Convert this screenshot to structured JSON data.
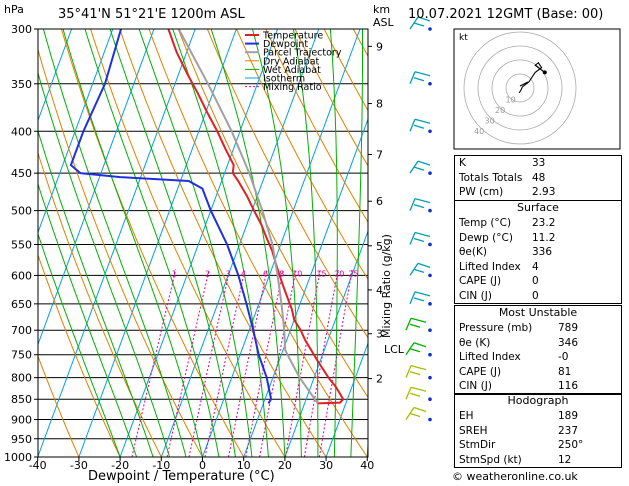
{
  "header": {
    "location": "35°41'N  51°21'E  1200m  ASL",
    "datetime": "10.07.2021  12GMT  (Base: 00)"
  },
  "skewt": {
    "pressure_unit": "hPa",
    "height_unit": "km",
    "height_unit2": "ASL",
    "pressure_ticks": [
      "300",
      "350",
      "400",
      "450",
      "500",
      "550",
      "600",
      "650",
      "700",
      "750",
      "800",
      "850",
      "900",
      "950",
      "1000"
    ],
    "temp_ticks": [
      "-40",
      "-30",
      "-20",
      "-10",
      "0",
      "10",
      "20",
      "30",
      "40"
    ],
    "xlabel": "Dewpoint / Temperature (°C)",
    "km_ticks": [
      "9",
      "8",
      "7",
      "6",
      "5",
      "4",
      "3",
      "2"
    ],
    "lcl_label": "LCL",
    "mixing_ratio_label": "Mixing Ratio (g/kg)",
    "mixing_ratio_ticks": [
      "1",
      "2",
      "3",
      "4",
      "6",
      "8",
      "10",
      "15",
      "20",
      "25"
    ],
    "legend": [
      "Temperature",
      "Dewpoint",
      "Parcel Trajectory",
      "Dry Adiabat",
      "Wet Adiabat",
      "Isotherm",
      "Mixing Ratio"
    ],
    "colors": {
      "temperature": "#e02020",
      "dewpoint": "#2030e0",
      "parcel": "#a0a0a0",
      "dry_adiabat": "#e08000",
      "wet_adiabat": "#00b000",
      "isotherm": "#00a0e0",
      "mixing_ratio": "#e000a0",
      "wind": "#00a0b0"
    }
  },
  "chart_data": {
    "type": "line",
    "title": "35°41'N  51°21'E  1200m  ASL",
    "xlabel": "Dewpoint / Temperature (°C)",
    "ylabel": "hPa",
    "xlim": [
      -40,
      40
    ],
    "ylim": [
      1000,
      300
    ],
    "y_scale": "log",
    "series": [
      {
        "name": "Temperature",
        "pressure": [
          860,
          858,
          850,
          840,
          820,
          800,
          760,
          720,
          700,
          680,
          660,
          640,
          620,
          600,
          580,
          560,
          540,
          520,
          500,
          480,
          460,
          450,
          440,
          420,
          400,
          380,
          360,
          340,
          320,
          300
        ],
        "values": [
          23.2,
          28.5,
          29.0,
          28.0,
          26.0,
          23.5,
          19.0,
          14.5,
          12.5,
          10.0,
          8.5,
          6.5,
          4.5,
          2.5,
          0.5,
          -1.5,
          -4.0,
          -6.5,
          -9.5,
          -12.5,
          -16.0,
          -18.0,
          -18.5,
          -22.0,
          -25.5,
          -29.5,
          -33.5,
          -38.0,
          -42.5,
          -46.5
        ]
      },
      {
        "name": "Dewpoint",
        "pressure": [
          860,
          850,
          800,
          750,
          700,
          650,
          600,
          550,
          500,
          470,
          460,
          455,
          450,
          440,
          400,
          350,
          300
        ],
        "values": [
          11.2,
          11.5,
          8.5,
          4.5,
          1.0,
          -3.0,
          -7.5,
          -13.0,
          -20.0,
          -24.0,
          -28.0,
          -45.0,
          -55.0,
          -58.0,
          -58.0,
          -57.0,
          -58.0
        ]
      },
      {
        "name": "Parcel Trajectory",
        "pressure": [
          860,
          800,
          760,
          740,
          700,
          650,
          600,
          550,
          500,
          450,
          400,
          350,
          300
        ],
        "values": [
          23.2,
          16.5,
          12.5,
          10.5,
          8.5,
          5.5,
          2.0,
          -2.0,
          -7.5,
          -14.0,
          -22.0,
          -32.0,
          -44.0
        ]
      }
    ]
  },
  "hodograph": {
    "unit_label": "kt",
    "ring_labels": [
      "10",
      "20",
      "30",
      "40"
    ],
    "wind_u": [
      2,
      3,
      4,
      6,
      8,
      10,
      12,
      14,
      16,
      14,
      12,
      16,
      18
    ],
    "wind_v": [
      1,
      3,
      6,
      8,
      10,
      14,
      18,
      20,
      22,
      26,
      24,
      20,
      18
    ]
  },
  "indices": {
    "rows": [
      {
        "label": "K",
        "value": "33"
      },
      {
        "label": "Totals Totals",
        "value": "48"
      },
      {
        "label": "PW (cm)",
        "value": "2.93"
      }
    ],
    "surface": {
      "title": "Surface",
      "rows": [
        {
          "label": "Temp (°C)",
          "value": "23.2"
        },
        {
          "label": "Dewp (°C)",
          "value": "11.2"
        },
        {
          "label": "θe(K)",
          "value": "336"
        },
        {
          "label": "Lifted Index",
          "value": "4"
        },
        {
          "label": "CAPE (J)",
          "value": "0"
        },
        {
          "label": "CIN (J)",
          "value": "0"
        }
      ]
    },
    "most_unstable": {
      "title": "Most Unstable",
      "rows": [
        {
          "label": "Pressure (mb)",
          "value": "789"
        },
        {
          "label": "θe (K)",
          "value": "346"
        },
        {
          "label": "Lifted Index",
          "value": "-0"
        },
        {
          "label": "CAPE (J)",
          "value": "81"
        },
        {
          "label": "CIN (J)",
          "value": "116"
        }
      ]
    },
    "hodograph_params": {
      "title": "Hodograph",
      "rows": [
        {
          "label": "EH",
          "value": "189"
        },
        {
          "label": "SREH",
          "value": "237"
        },
        {
          "label": "StmDir",
          "value": "250°"
        },
        {
          "label": "StmSpd (kt)",
          "value": "12"
        }
      ]
    }
  },
  "footer": "© weatheronline.co.uk"
}
